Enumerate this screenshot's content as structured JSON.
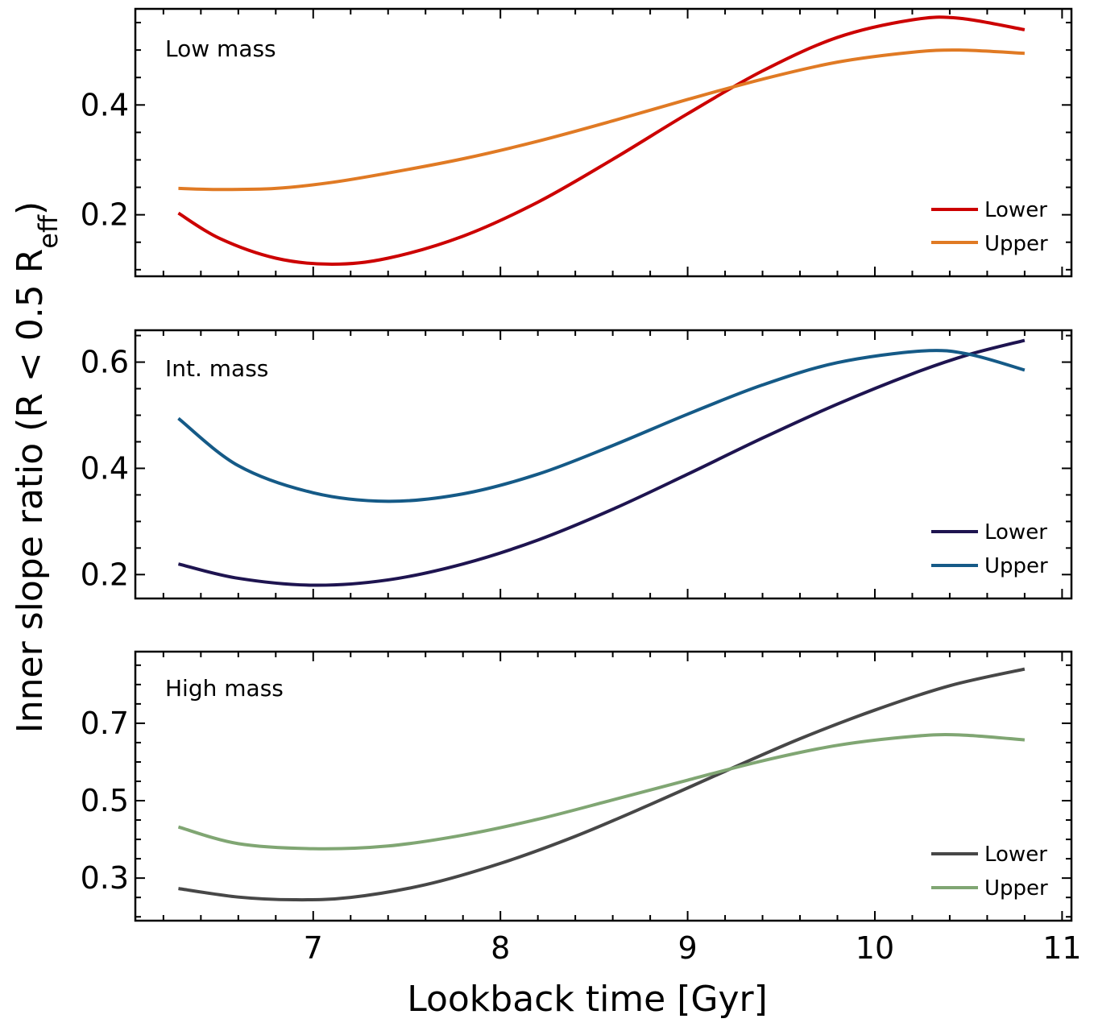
{
  "chart_data": [
    {
      "type": "line",
      "panel_label": "Low mass",
      "xlim": [
        6.05,
        11.05
      ],
      "ylim": [
        0.088,
        0.575
      ],
      "yticks": [
        0.2,
        0.4
      ],
      "ytick_labels": [
        "0.2",
        "0.4"
      ],
      "legend_position": "lower-right",
      "series": [
        {
          "name": "Lower",
          "color": "#cc0000",
          "x": [
            6.28,
            6.5,
            6.8,
            7.1,
            7.4,
            7.8,
            8.2,
            8.6,
            9.0,
            9.4,
            9.8,
            10.2,
            10.45,
            10.8
          ],
          "y": [
            0.203,
            0.157,
            0.121,
            0.11,
            0.121,
            0.161,
            0.223,
            0.301,
            0.384,
            0.462,
            0.523,
            0.555,
            0.558,
            0.537
          ]
        },
        {
          "name": "Upper",
          "color": "#e07a24",
          "x": [
            6.28,
            6.5,
            6.8,
            7.1,
            7.4,
            7.8,
            8.2,
            8.6,
            9.0,
            9.4,
            9.8,
            10.2,
            10.45,
            10.8
          ],
          "y": [
            0.248,
            0.246,
            0.248,
            0.259,
            0.276,
            0.302,
            0.334,
            0.371,
            0.41,
            0.447,
            0.478,
            0.496,
            0.5,
            0.494
          ]
        }
      ]
    },
    {
      "type": "line",
      "panel_label": "Int. mass",
      "xlim": [
        6.05,
        11.05
      ],
      "ylim": [
        0.155,
        0.66
      ],
      "yticks": [
        0.2,
        0.4,
        0.6
      ],
      "ytick_labels": [
        "0.2",
        "0.4",
        "0.6"
      ],
      "legend_position": "lower-right",
      "series": [
        {
          "name": "Lower",
          "color": "#1e1450",
          "x": [
            6.28,
            6.6,
            7.0,
            7.4,
            7.8,
            8.2,
            8.6,
            9.0,
            9.4,
            9.8,
            10.2,
            10.5,
            10.8
          ],
          "y": [
            0.22,
            0.193,
            0.18,
            0.19,
            0.22,
            0.265,
            0.323,
            0.389,
            0.457,
            0.521,
            0.578,
            0.614,
            0.641
          ]
        },
        {
          "name": "Upper",
          "color": "#155a87",
          "x": [
            6.28,
            6.6,
            7.0,
            7.4,
            7.8,
            8.2,
            8.6,
            9.0,
            9.4,
            9.8,
            10.25,
            10.5,
            10.8
          ],
          "y": [
            0.494,
            0.405,
            0.354,
            0.338,
            0.352,
            0.389,
            0.443,
            0.502,
            0.557,
            0.599,
            0.621,
            0.615,
            0.585
          ]
        }
      ]
    },
    {
      "type": "line",
      "panel_label": "High mass",
      "xlim": [
        6.05,
        11.05
      ],
      "ylim": [
        0.19,
        0.885
      ],
      "yticks": [
        0.3,
        0.5,
        0.7
      ],
      "ytick_labels": [
        "0.3",
        "0.5",
        "0.7"
      ],
      "legend_position": "lower-right",
      "series": [
        {
          "name": "Lower",
          "color": "#474747",
          "x": [
            6.28,
            6.6,
            6.9,
            7.2,
            7.6,
            8.0,
            8.4,
            8.8,
            9.2,
            9.6,
            10.0,
            10.4,
            10.8
          ],
          "y": [
            0.273,
            0.251,
            0.244,
            0.25,
            0.283,
            0.338,
            0.408,
            0.49,
            0.576,
            0.66,
            0.734,
            0.797,
            0.84
          ]
        },
        {
          "name": "Upper",
          "color": "#80a673",
          "x": [
            6.28,
            6.6,
            7.0,
            7.4,
            7.8,
            8.2,
            8.6,
            9.0,
            9.4,
            9.8,
            10.2,
            10.45,
            10.8
          ],
          "y": [
            0.432,
            0.389,
            0.376,
            0.383,
            0.411,
            0.452,
            0.502,
            0.553,
            0.603,
            0.643,
            0.666,
            0.67,
            0.657
          ]
        }
      ]
    }
  ],
  "axes": {
    "xlabel": "Lookback time [Gyr]",
    "ylabel_main": "Inner slope ratio (R < 0.5 R",
    "ylabel_sub": "eff",
    "ylabel_close": ")",
    "xticks": [
      7,
      8,
      9,
      10,
      11
    ],
    "xtick_labels": [
      "7",
      "8",
      "9",
      "10",
      "11"
    ]
  }
}
